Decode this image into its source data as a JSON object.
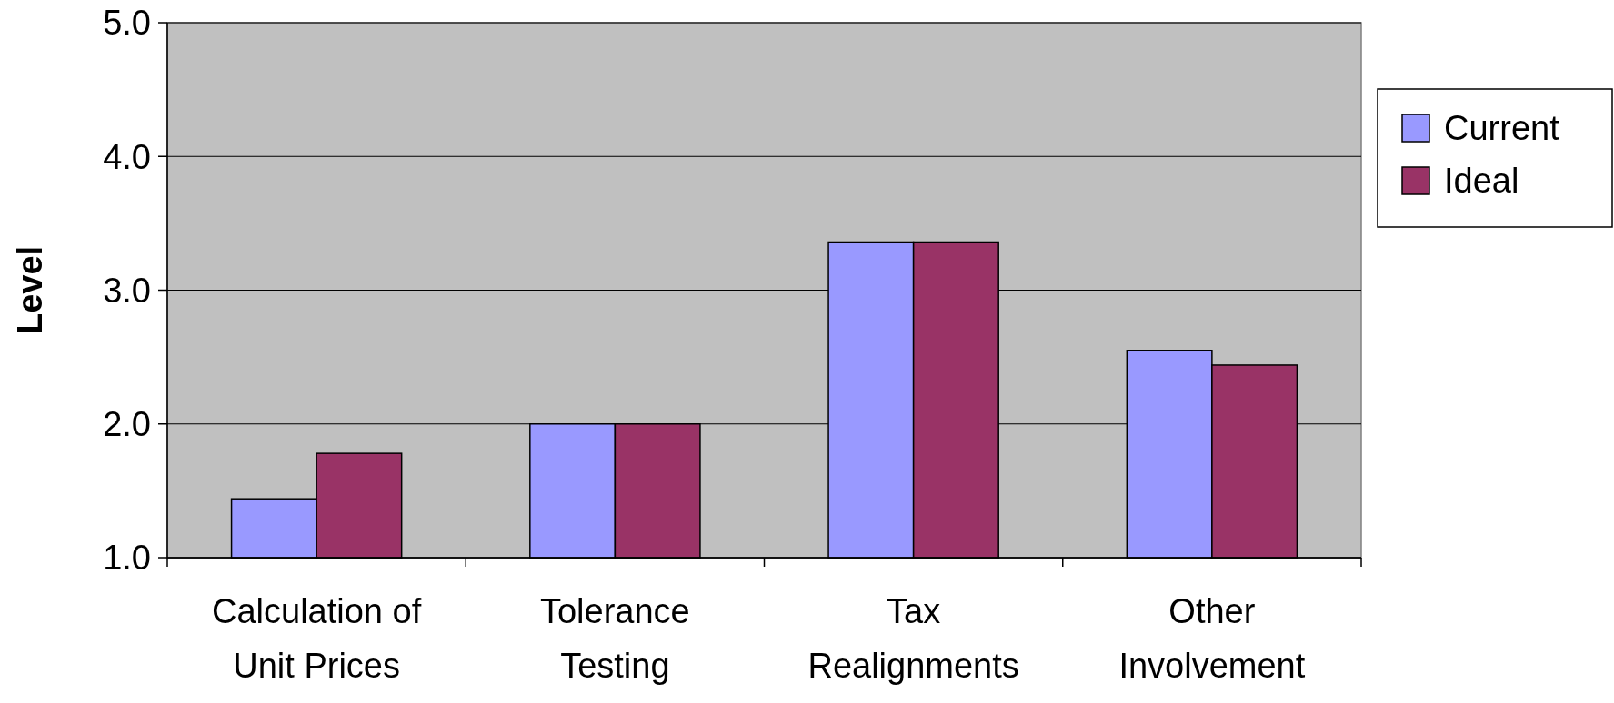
{
  "chart_data": {
    "type": "bar",
    "ylabel": "Level",
    "categories": [
      "Calculation of Unit Prices",
      "Tolerance Testing",
      "Tax Realignments",
      "Other Involvement"
    ],
    "series": [
      {
        "name": "Current",
        "color": "#9999ff",
        "values": [
          1.44,
          2.0,
          3.36,
          2.55
        ]
      },
      {
        "name": "Ideal",
        "color": "#993366",
        "values": [
          1.78,
          2.0,
          3.36,
          2.44
        ]
      }
    ],
    "ylim": [
      1,
      5
    ],
    "yticks": [
      {
        "value": 1,
        "label": "1.0"
      },
      {
        "value": 2,
        "label": "2.0"
      },
      {
        "value": 3,
        "label": "3.0"
      },
      {
        "value": 4,
        "label": "4.0"
      },
      {
        "value": 5,
        "label": "5.0"
      }
    ],
    "grid": "y",
    "legend": "right"
  }
}
